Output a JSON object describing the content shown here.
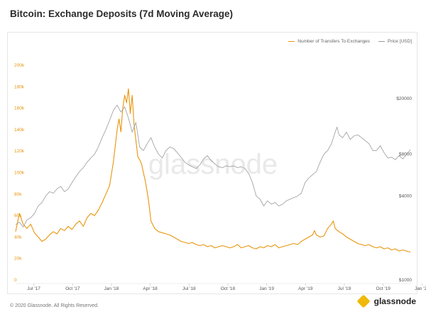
{
  "chart_data": {
    "type": "line",
    "title": "Bitcoin: Exchange Deposits (7d Moving Average)",
    "x_ticks": [
      "Jul '17",
      "Oct '17",
      "Jan '18",
      "Apr '18",
      "Jul '18",
      "Oct '18",
      "Jan '19",
      "Apr '19",
      "Jul '19",
      "Oct '19",
      "Jan '20"
    ],
    "y_left": {
      "ticks": [
        "0",
        "20k",
        "40k",
        "60k",
        "80k",
        "100k",
        "120k",
        "140k",
        "160k",
        "180k",
        "200k"
      ],
      "ylim": [
        0,
        200000
      ]
    },
    "y_right": {
      "scale": "log",
      "ticks": [
        "$1000",
        "$4000",
        "$8000",
        "$20000"
      ],
      "ylim": [
        1000,
        40000
      ]
    },
    "series": [
      {
        "name": "Number of Transfers To Exchanges",
        "color": "#e8950c",
        "axis": "left",
        "points": [
          [
            0,
            45000
          ],
          [
            4,
            62000
          ],
          [
            8,
            52000
          ],
          [
            12,
            48000
          ],
          [
            16,
            52000
          ],
          [
            20,
            44000
          ],
          [
            24,
            40000
          ],
          [
            28,
            36000
          ],
          [
            32,
            38000
          ],
          [
            36,
            42000
          ],
          [
            40,
            45000
          ],
          [
            44,
            43000
          ],
          [
            48,
            48000
          ],
          [
            52,
            46000
          ],
          [
            56,
            50000
          ],
          [
            60,
            47000
          ],
          [
            64,
            52000
          ],
          [
            68,
            55000
          ],
          [
            72,
            50000
          ],
          [
            76,
            58000
          ],
          [
            80,
            62000
          ],
          [
            84,
            60000
          ],
          [
            88,
            65000
          ],
          [
            92,
            72000
          ],
          [
            96,
            80000
          ],
          [
            100,
            88000
          ],
          [
            104,
            110000
          ],
          [
            108,
            140000
          ],
          [
            110,
            150000
          ],
          [
            112,
            138000
          ],
          [
            114,
            160000
          ],
          [
            116,
            172000
          ],
          [
            118,
            165000
          ],
          [
            120,
            178000
          ],
          [
            122,
            155000
          ],
          [
            124,
            172000
          ],
          [
            126,
            145000
          ],
          [
            128,
            130000
          ],
          [
            130,
            115000
          ],
          [
            132,
            112000
          ],
          [
            134,
            108000
          ],
          [
            136,
            100000
          ],
          [
            138,
            92000
          ],
          [
            140,
            82000
          ],
          [
            142,
            70000
          ],
          [
            144,
            55000
          ],
          [
            148,
            48000
          ],
          [
            152,
            45000
          ],
          [
            156,
            44000
          ],
          [
            160,
            43000
          ],
          [
            164,
            42000
          ],
          [
            168,
            40000
          ],
          [
            172,
            38000
          ],
          [
            176,
            36000
          ],
          [
            180,
            35000
          ],
          [
            184,
            34000
          ],
          [
            188,
            35000
          ],
          [
            192,
            33000
          ],
          [
            196,
            32000
          ],
          [
            200,
            33000
          ],
          [
            204,
            31000
          ],
          [
            208,
            32000
          ],
          [
            212,
            30000
          ],
          [
            216,
            31000
          ],
          [
            220,
            32000
          ],
          [
            224,
            31000
          ],
          [
            228,
            30000
          ],
          [
            232,
            31000
          ],
          [
            236,
            33000
          ],
          [
            240,
            30000
          ],
          [
            244,
            31000
          ],
          [
            248,
            32000
          ],
          [
            252,
            30000
          ],
          [
            256,
            29000
          ],
          [
            260,
            31000
          ],
          [
            264,
            30000
          ],
          [
            268,
            32000
          ],
          [
            272,
            31000
          ],
          [
            276,
            33000
          ],
          [
            280,
            30000
          ],
          [
            284,
            31000
          ],
          [
            288,
            32000
          ],
          [
            292,
            33000
          ],
          [
            296,
            34000
          ],
          [
            300,
            33000
          ],
          [
            304,
            36000
          ],
          [
            308,
            38000
          ],
          [
            312,
            40000
          ],
          [
            316,
            42000
          ],
          [
            318,
            46000
          ],
          [
            320,
            42000
          ],
          [
            324,
            40000
          ],
          [
            328,
            41000
          ],
          [
            332,
            48000
          ],
          [
            336,
            52000
          ],
          [
            338,
            55000
          ],
          [
            340,
            48000
          ],
          [
            344,
            45000
          ],
          [
            348,
            43000
          ],
          [
            352,
            40000
          ],
          [
            356,
            38000
          ],
          [
            360,
            36000
          ],
          [
            364,
            34000
          ],
          [
            368,
            33000
          ],
          [
            372,
            32000
          ],
          [
            376,
            33000
          ],
          [
            380,
            31000
          ],
          [
            384,
            30000
          ],
          [
            388,
            31000
          ],
          [
            392,
            29000
          ],
          [
            396,
            30000
          ],
          [
            400,
            28000
          ],
          [
            404,
            29000
          ],
          [
            408,
            27000
          ],
          [
            412,
            28000
          ],
          [
            416,
            27000
          ],
          [
            420,
            26000
          ]
        ]
      },
      {
        "name": "Price [USD]",
        "color": "#9a9a9a",
        "axis": "right",
        "points": [
          [
            0,
            2500
          ],
          [
            4,
            2600
          ],
          [
            8,
            2400
          ],
          [
            12,
            2700
          ],
          [
            16,
            2800
          ],
          [
            20,
            3000
          ],
          [
            24,
            3400
          ],
          [
            28,
            3600
          ],
          [
            32,
            4000
          ],
          [
            36,
            4300
          ],
          [
            40,
            4200
          ],
          [
            44,
            4500
          ],
          [
            48,
            4700
          ],
          [
            52,
            4300
          ],
          [
            56,
            4500
          ],
          [
            60,
            5000
          ],
          [
            64,
            5500
          ],
          [
            68,
            6000
          ],
          [
            72,
            6400
          ],
          [
            76,
            7000
          ],
          [
            80,
            7500
          ],
          [
            84,
            8000
          ],
          [
            88,
            9000
          ],
          [
            92,
            10500
          ],
          [
            96,
            12000
          ],
          [
            100,
            14000
          ],
          [
            104,
            16500
          ],
          [
            108,
            18000
          ],
          [
            112,
            16000
          ],
          [
            116,
            17500
          ],
          [
            120,
            14500
          ],
          [
            124,
            11500
          ],
          [
            128,
            13500
          ],
          [
            130,
            11000
          ],
          [
            132,
            9000
          ],
          [
            136,
            8500
          ],
          [
            140,
            9500
          ],
          [
            144,
            10500
          ],
          [
            148,
            9000
          ],
          [
            152,
            8000
          ],
          [
            156,
            7500
          ],
          [
            160,
            8500
          ],
          [
            164,
            9000
          ],
          [
            168,
            8800
          ],
          [
            172,
            8200
          ],
          [
            176,
            7600
          ],
          [
            180,
            7000
          ],
          [
            184,
            6700
          ],
          [
            188,
            6500
          ],
          [
            192,
            6300
          ],
          [
            196,
            6700
          ],
          [
            200,
            7400
          ],
          [
            204,
            7800
          ],
          [
            208,
            7200
          ],
          [
            212,
            6800
          ],
          [
            216,
            6500
          ],
          [
            220,
            6400
          ],
          [
            224,
            6600
          ],
          [
            228,
            6500
          ],
          [
            232,
            6600
          ],
          [
            236,
            6400
          ],
          [
            240,
            6500
          ],
          [
            244,
            6300
          ],
          [
            248,
            5800
          ],
          [
            252,
            5000
          ],
          [
            256,
            4000
          ],
          [
            260,
            3800
          ],
          [
            264,
            3400
          ],
          [
            268,
            3700
          ],
          [
            272,
            3500
          ],
          [
            276,
            3600
          ],
          [
            280,
            3400
          ],
          [
            284,
            3500
          ],
          [
            288,
            3700
          ],
          [
            292,
            3800
          ],
          [
            296,
            3900
          ],
          [
            300,
            4000
          ],
          [
            304,
            4200
          ],
          [
            308,
            5000
          ],
          [
            312,
            5400
          ],
          [
            316,
            5700
          ],
          [
            320,
            6000
          ],
          [
            324,
            7000
          ],
          [
            328,
            8000
          ],
          [
            332,
            8500
          ],
          [
            336,
            9500
          ],
          [
            340,
            11500
          ],
          [
            342,
            12500
          ],
          [
            344,
            11000
          ],
          [
            348,
            10500
          ],
          [
            352,
            11500
          ],
          [
            356,
            10200
          ],
          [
            360,
            10800
          ],
          [
            364,
            11000
          ],
          [
            368,
            10500
          ],
          [
            372,
            10000
          ],
          [
            376,
            9500
          ],
          [
            380,
            8500
          ],
          [
            384,
            8500
          ],
          [
            388,
            9200
          ],
          [
            392,
            8200
          ],
          [
            396,
            7500
          ],
          [
            400,
            7600
          ],
          [
            404,
            7300
          ],
          [
            408,
            7800
          ],
          [
            412,
            7400
          ],
          [
            416,
            8000
          ],
          [
            420,
            8600
          ]
        ]
      }
    ],
    "legend_position": "top-right",
    "watermark": "glassnode"
  },
  "footer": {
    "copyright": "© 2020 Glassnode. All Rights Reserved."
  },
  "brand": {
    "name": "glassnode"
  }
}
